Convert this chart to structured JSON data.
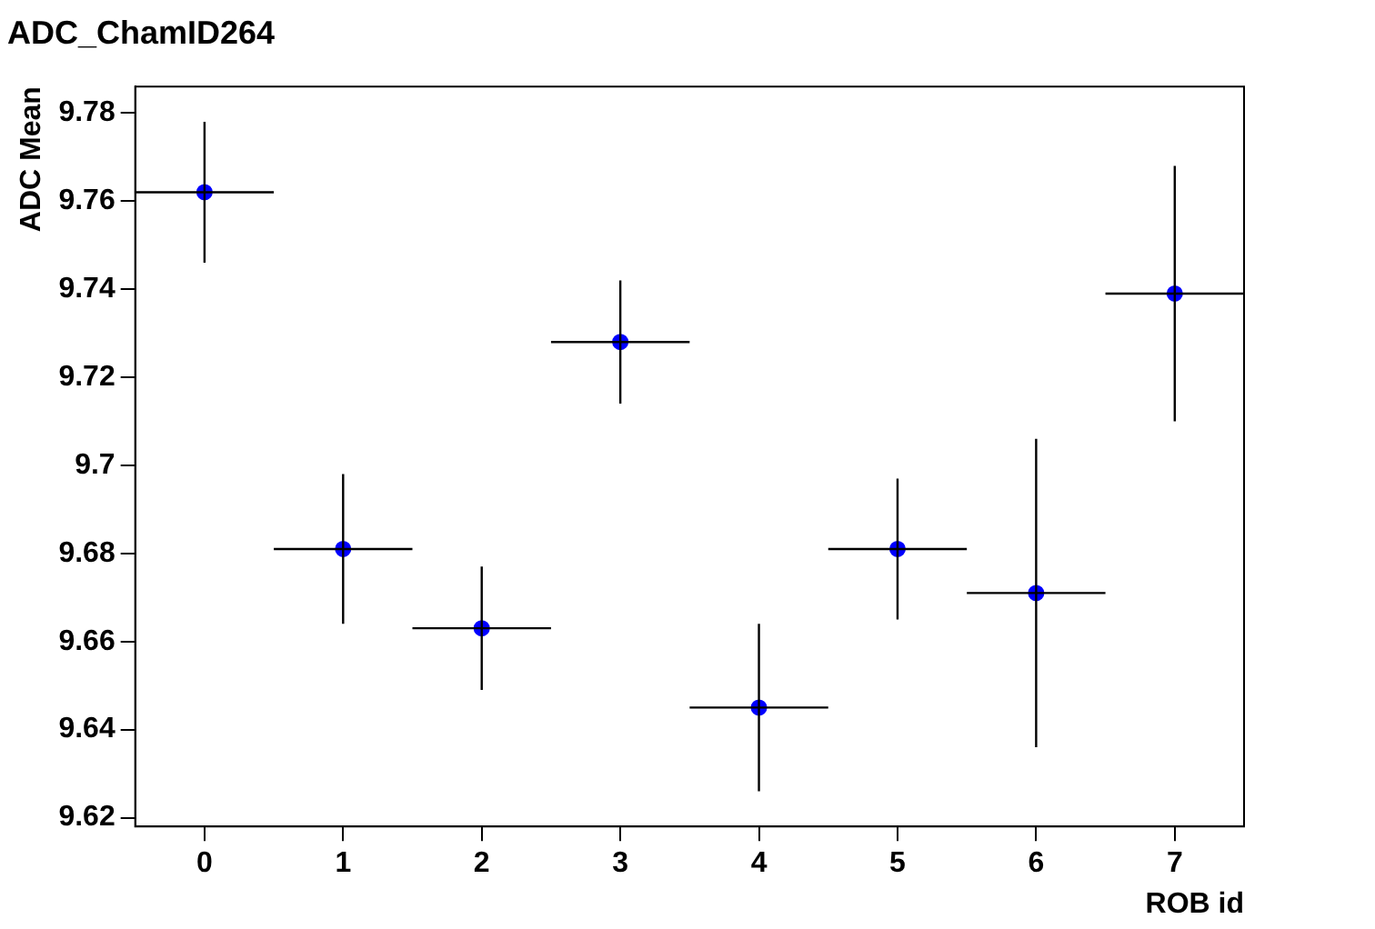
{
  "chart_data": {
    "type": "scatter",
    "title": "ADC_ChamID264",
    "xlabel": "ROB id",
    "ylabel": "ADC Mean",
    "x": [
      0,
      1,
      2,
      3,
      4,
      5,
      6,
      7
    ],
    "series": [
      {
        "color": "#0000ff",
        "values": [
          9.762,
          9.681,
          9.663,
          9.728,
          9.645,
          9.681,
          9.671,
          9.739
        ],
        "errors": [
          0.016,
          0.017,
          0.014,
          0.014,
          0.019,
          0.016,
          0.035,
          0.029
        ],
        "xerrors": [
          0.5,
          0.5,
          0.5,
          0.5,
          0.5,
          0.5,
          0.5,
          0.5
        ]
      }
    ],
    "xlim": [
      -0.5,
      7.5
    ],
    "xticks": [
      0,
      1,
      2,
      3,
      4,
      5,
      6,
      7
    ],
    "ylim": [
      9.618,
      9.786
    ],
    "yticks": [
      9.62,
      9.64,
      9.66,
      9.68,
      9.7,
      9.72,
      9.74,
      9.76,
      9.78
    ],
    "grid": false,
    "legend": false,
    "marker": "circle"
  }
}
